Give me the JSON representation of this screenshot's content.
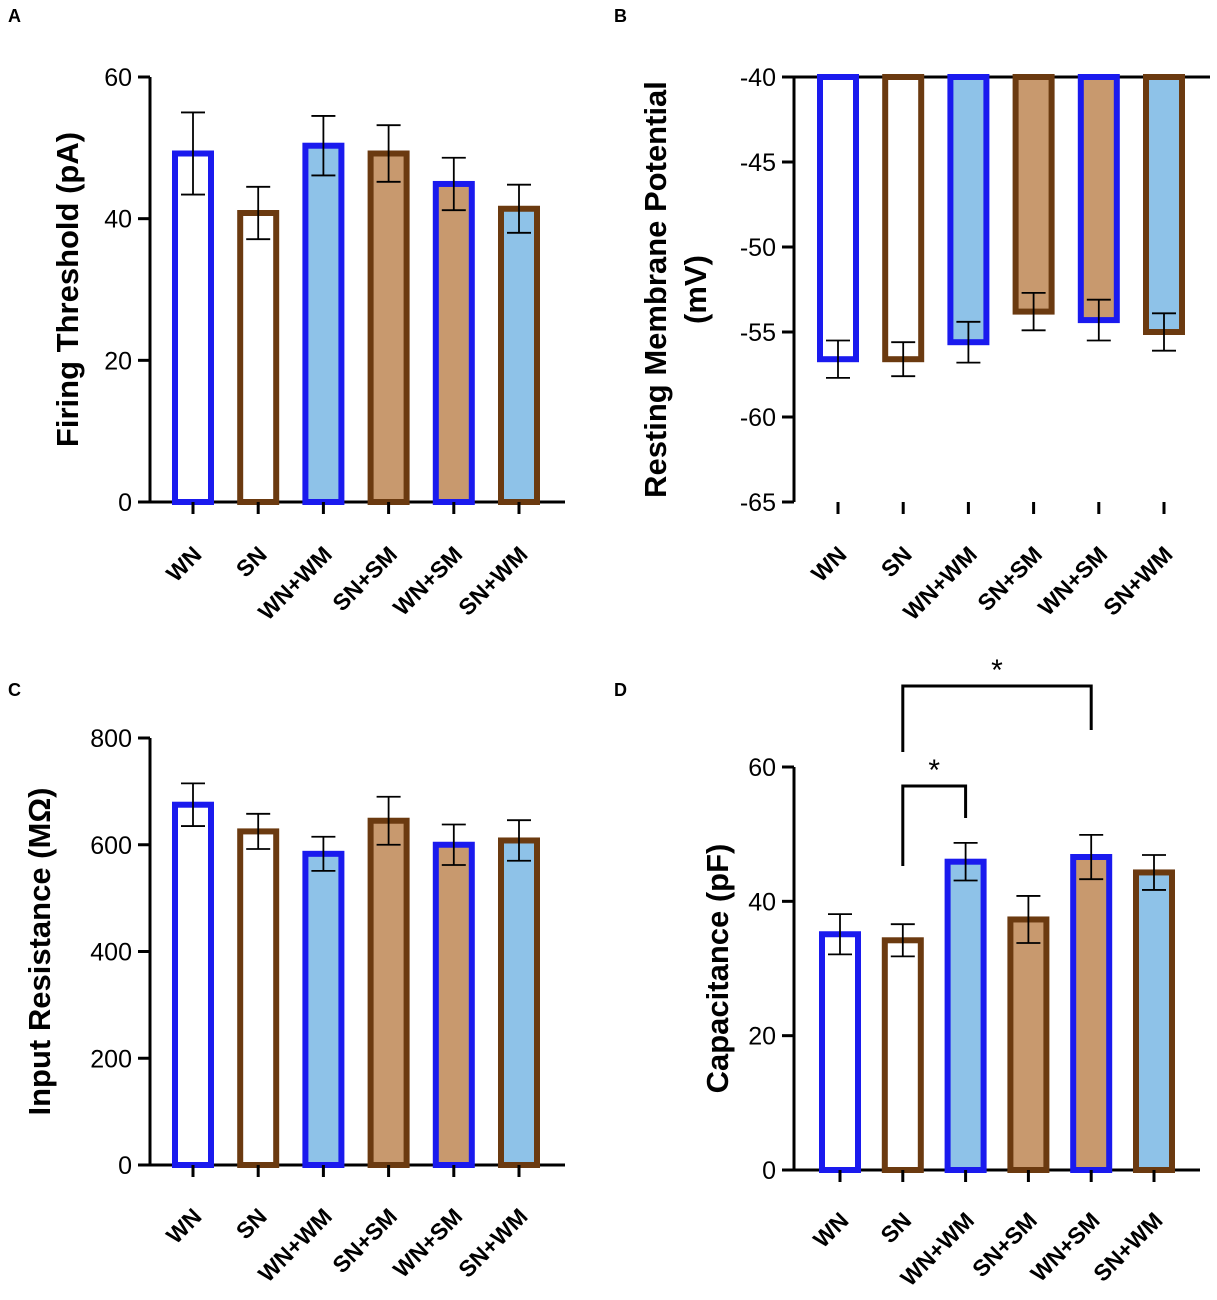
{
  "colors": {
    "wn_edge": "#1a1aee",
    "sn_edge": "#6b3a10",
    "wm_fill": "#8ec2e8",
    "sm_fill": "#c8996e",
    "axis": "#000000",
    "white": "#ffffff"
  },
  "chart_data": [
    {
      "panel": "A",
      "type": "bar",
      "categories": [
        "WN",
        "SN",
        "WN+WM",
        "SN+SM",
        "WN+SM",
        "SN+WM"
      ],
      "values": [
        49.2,
        40.8,
        50.3,
        49.2,
        44.9,
        41.4
      ],
      "errors": [
        5.8,
        3.7,
        4.2,
        4.0,
        3.7,
        3.4
      ],
      "ylabel": "Firing Threshold (pA)",
      "ylabel_lines": [
        "Firing Threshold (pA)"
      ],
      "xlabel": "",
      "ylim": [
        0,
        60
      ],
      "yticks": [
        0,
        20,
        40,
        60
      ],
      "ytick_labels": [
        "0",
        "20",
        "40",
        "60"
      ],
      "baseline": 0,
      "significance": []
    },
    {
      "panel": "B",
      "type": "bar",
      "categories": [
        "WN",
        "SN",
        "WN+WM",
        "SN+SM",
        "WN+SM",
        "SN+WM"
      ],
      "values": [
        -56.6,
        -56.6,
        -55.6,
        -53.8,
        -54.3,
        -55.0
      ],
      "errors": [
        1.1,
        1.0,
        1.2,
        1.1,
        1.2,
        1.1
      ],
      "ylabel": "Resting Membrane Potential (mV)",
      "ylabel_lines": [
        "Resting Membrane Potential",
        "(mV)"
      ],
      "xlabel": "",
      "ylim": [
        -65,
        -40
      ],
      "yticks": [
        -65,
        -60,
        -55,
        -50,
        -45,
        -40
      ],
      "ytick_labels": [
        "-65",
        "-60",
        "-55",
        "-50",
        "-45",
        "-40"
      ],
      "baseline": -40,
      "significance": []
    },
    {
      "panel": "C",
      "type": "bar",
      "categories": [
        "WN",
        "SN",
        "WN+WM",
        "SN+SM",
        "WN+SM",
        "SN+WM"
      ],
      "values": [
        675,
        625,
        583,
        645,
        600,
        608
      ],
      "errors": [
        40,
        33,
        32,
        45,
        38,
        38
      ],
      "ylabel": "Input Resistance (MΩ)",
      "ylabel_lines": [
        "Input Resistance (MΩ)"
      ],
      "xlabel": "",
      "ylim": [
        0,
        800
      ],
      "yticks": [
        0,
        200,
        400,
        600,
        800
      ],
      "ytick_labels": [
        "0",
        "200",
        "400",
        "600",
        "800"
      ],
      "baseline": 0,
      "significance": []
    },
    {
      "panel": "D",
      "type": "bar",
      "categories": [
        "WN",
        "SN",
        "WN+WM",
        "SN+SM",
        "WN+SM",
        "SN+WM"
      ],
      "values": [
        35.1,
        34.2,
        45.9,
        37.3,
        46.6,
        44.3
      ],
      "errors": [
        3.0,
        2.4,
        2.8,
        3.5,
        3.3,
        2.6
      ],
      "ylabel": "Capacitance (pF)",
      "ylabel_lines": [
        "Capacitance (pF)"
      ],
      "xlabel": "",
      "ylim": [
        0,
        60
      ],
      "yticks": [
        0,
        20,
        40,
        60
      ],
      "ytick_labels": [
        "0",
        "20",
        "40",
        "60"
      ],
      "baseline": 0,
      "significance": [
        {
          "from": "SN",
          "to": "WN+WM",
          "label": "*"
        },
        {
          "from": "SN",
          "to": "WN+SM",
          "label": "*"
        }
      ]
    }
  ]
}
